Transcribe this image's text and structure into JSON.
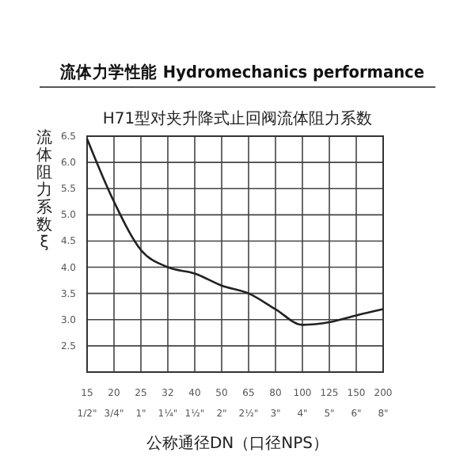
{
  "chart_data": {
    "type": "line",
    "title": "流体力学性能 Hydromechanics performance",
    "subtitle": "H71型对夹升降式止回阀流体阻力系数",
    "xlabel": "公称通径DN（口径NPS）",
    "ylabel": "流体阻力系数 ξ",
    "categories": [
      "15\n1/2\"",
      "20\n3/4\"",
      "25\n1\"",
      "32\n1¼\"",
      "40\n1½\"",
      "50\n2\"",
      "65\n2½\"",
      "80\n3\"",
      "100\n4\"",
      "125\n5\"",
      "150\n6\"",
      "200\n8\""
    ],
    "series": [
      {
        "color": "#222222",
        "values": [
          6.45,
          5.25,
          4.33,
          4.0,
          3.88,
          3.65,
          3.5,
          3.2,
          2.9,
          2.95,
          3.08,
          3.2
        ]
      }
    ],
    "ylim": [
      2.0,
      6.5
    ],
    "yticks": [
      {
        "value": 2.0,
        "label": null
      },
      2.5,
      {
        "value": 3,
        "label": "3.0"
      },
      3.5,
      {
        "value": 4,
        "label": "4.0"
      },
      4.5,
      {
        "value": 5,
        "label": "5.0"
      },
      5.5,
      {
        "value": 6,
        "label": "6.0"
      },
      6.5
    ],
    "grid": true,
    "marker": "none",
    "line_style": "solid"
  }
}
